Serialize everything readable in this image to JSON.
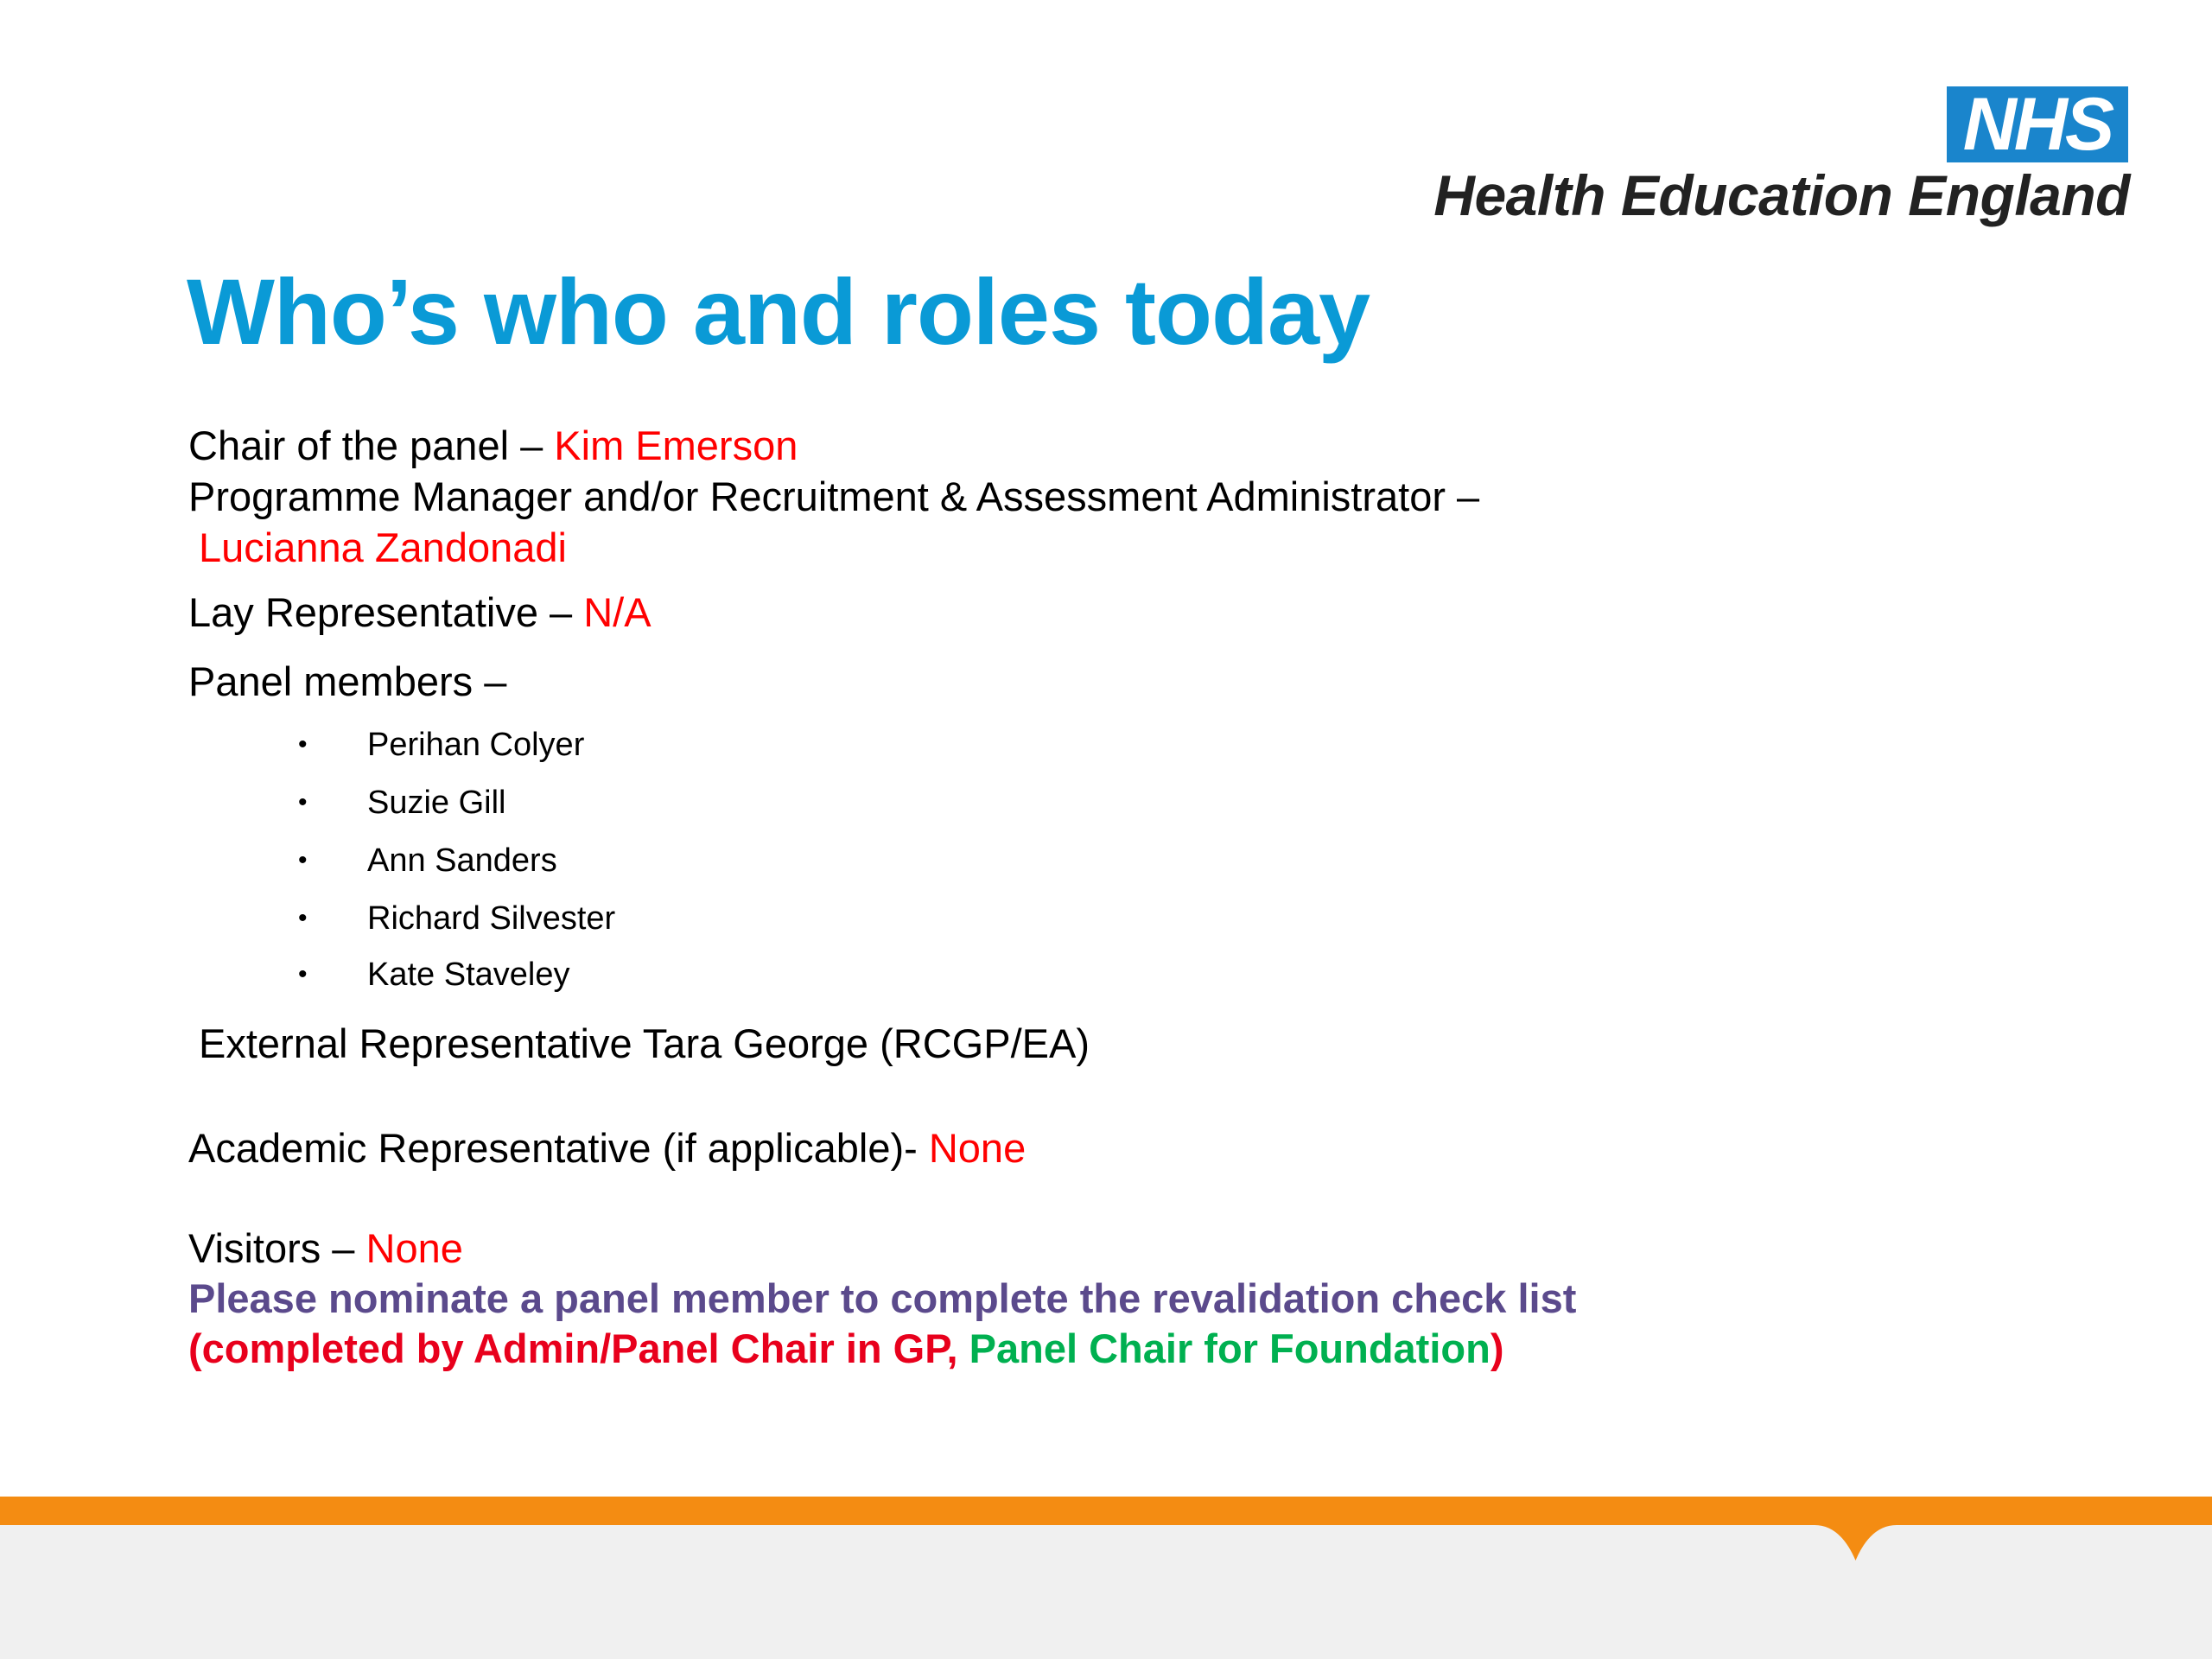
{
  "logo": {
    "nhs": "NHS",
    "org": "Health Education England"
  },
  "title": "Who’s who and roles today",
  "roles": {
    "chair_label": "Chair of the panel – ",
    "chair_value": "Kim Emerson",
    "pm_label": "Programme Manager and/or Recruitment & Assessment Administrator –",
    "pm_value": "Lucianna Zandonadi",
    "lay_label": "Lay Representative – ",
    "lay_value": "N/A",
    "panel_label": "Panel members –",
    "panel_members": [
      "Perihan Colyer",
      "Suzie Gill",
      "Ann Sanders",
      "Richard Silvester",
      "Kate Staveley"
    ],
    "external": "External Representative Tara George (RCGP/EA)",
    "academic_label": "Academic Representative (if applicable)- ",
    "academic_value": "None",
    "visitors_label": "Visitors –  ",
    "visitors_value": "None"
  },
  "note": {
    "line1": "Please nominate a panel member to complete the revalidation check list",
    "line2_a": "(completed by Admin/Panel Chair in GP, ",
    "line2_b": "Panel Chair for Foundation",
    "line2_c": ")"
  },
  "colors": {
    "title": "#0a9ad6",
    "nhs_blue": "#1a85cc",
    "accent_orange": "#f48c12",
    "value_red": "#ff0000",
    "note_purple": "#5b4a8c",
    "note_green": "#00b050"
  }
}
